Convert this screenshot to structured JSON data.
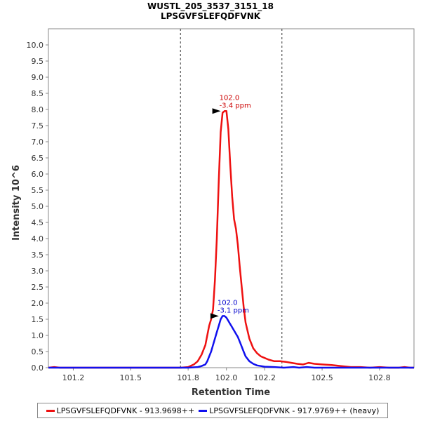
{
  "chart_data": {
    "type": "line",
    "title": "WUSTL_205_3537_3151_18",
    "subtitle": "LPSGVFSLEFQDFVNK",
    "xlabel": "Retention Time",
    "ylabel": "Intensity 10^6",
    "xlim": [
      101.07,
      102.98
    ],
    "ylim": [
      0,
      10.5
    ],
    "x_ticks": [
      101.2,
      101.5,
      101.8,
      102.0,
      102.2,
      102.5,
      102.8
    ],
    "x_tick_labels": [
      "101.2",
      "101.5",
      "101.8",
      "102.0",
      "102.2",
      "102.5",
      "102.8"
    ],
    "y_ticks": [
      0.0,
      0.5,
      1.0,
      1.5,
      2.0,
      2.5,
      3.0,
      3.5,
      4.0,
      4.5,
      5.0,
      5.5,
      6.0,
      6.5,
      7.0,
      7.5,
      8.0,
      8.5,
      9.0,
      9.5,
      10.0
    ],
    "y_tick_labels": [
      "0.0",
      "0.5",
      "1.0",
      "1.5",
      "2.0",
      "2.5",
      "3.0",
      "3.5",
      "4.0",
      "4.5",
      "5.0",
      "5.5",
      "6.0",
      "6.5",
      "7.0",
      "7.5",
      "8.0",
      "8.5",
      "9.0",
      "9.5",
      "10.0"
    ],
    "vlines": [
      101.76,
      102.29
    ],
    "series": [
      {
        "name": "LPSGVFSLEFQDFVNK - 913.9698++",
        "color": "#ee1111",
        "x": [
          101.07,
          101.1,
          101.13,
          101.2,
          101.5,
          101.7,
          101.76,
          101.8,
          101.83,
          101.85,
          101.87,
          101.89,
          101.9,
          101.91,
          101.92,
          101.93,
          101.94,
          101.95,
          101.96,
          101.97,
          101.98,
          101.99,
          102.0,
          102.01,
          102.02,
          102.03,
          102.04,
          102.05,
          102.06,
          102.07,
          102.08,
          102.09,
          102.1,
          102.12,
          102.14,
          102.16,
          102.18,
          102.2,
          102.22,
          102.25,
          102.28,
          102.31,
          102.34,
          102.37,
          102.4,
          102.43,
          102.46,
          102.5,
          102.55,
          102.6,
          102.65,
          102.7,
          102.75,
          102.8,
          102.85,
          102.9,
          102.93,
          102.96,
          102.98
        ],
        "y": [
          0.0,
          0.02,
          0.0,
          0.0,
          0.0,
          0.0,
          0.0,
          0.02,
          0.1,
          0.2,
          0.4,
          0.7,
          1.0,
          1.3,
          1.5,
          1.8,
          2.7,
          4.0,
          5.8,
          7.3,
          7.9,
          7.95,
          7.95,
          7.4,
          6.3,
          5.3,
          4.6,
          4.3,
          3.8,
          3.1,
          2.5,
          1.9,
          1.4,
          0.9,
          0.6,
          0.45,
          0.35,
          0.3,
          0.25,
          0.2,
          0.2,
          0.18,
          0.15,
          0.12,
          0.1,
          0.15,
          0.12,
          0.1,
          0.08,
          0.05,
          0.02,
          0.02,
          0.0,
          0.02,
          0.0,
          0.0,
          0.02,
          0.0,
          0.0
        ]
      },
      {
        "name": "LPSGVFSLEFQDFVNK - 917.9769++ (heavy)",
        "color": "#1111ee",
        "x": [
          101.07,
          101.5,
          101.8,
          101.85,
          101.87,
          101.89,
          101.9,
          101.91,
          101.92,
          101.93,
          101.94,
          101.95,
          101.96,
          101.97,
          101.98,
          101.99,
          102.0,
          102.01,
          102.02,
          102.03,
          102.04,
          102.05,
          102.06,
          102.07,
          102.08,
          102.09,
          102.1,
          102.12,
          102.14,
          102.16,
          102.18,
          102.2,
          102.25,
          102.3,
          102.35,
          102.38,
          102.42,
          102.46,
          102.5,
          102.98
        ],
        "y": [
          0.0,
          0.0,
          0.0,
          0.02,
          0.05,
          0.1,
          0.2,
          0.35,
          0.5,
          0.7,
          0.9,
          1.1,
          1.3,
          1.5,
          1.6,
          1.6,
          1.55,
          1.45,
          1.35,
          1.25,
          1.15,
          1.05,
          0.95,
          0.8,
          0.65,
          0.5,
          0.35,
          0.2,
          0.12,
          0.07,
          0.05,
          0.03,
          0.02,
          0.0,
          0.02,
          0.0,
          0.02,
          0.0,
          0.0,
          0.0
        ]
      }
    ],
    "annotations": [
      {
        "x": 101.985,
        "y": 7.95,
        "lines": [
          "102.0",
          "-3.4 ppm"
        ],
        "color": "#cc0000"
      },
      {
        "x": 101.975,
        "y": 1.6,
        "lines": [
          "102.0",
          "-3.1 ppm"
        ],
        "color": "#0000cc"
      }
    ]
  },
  "legend": {
    "red_label": "LPSGVFSLEFQDFVNK - 913.9698++",
    "blue_label": "LPSGVFSLEFQDFVNK - 917.9769++ (heavy)"
  }
}
